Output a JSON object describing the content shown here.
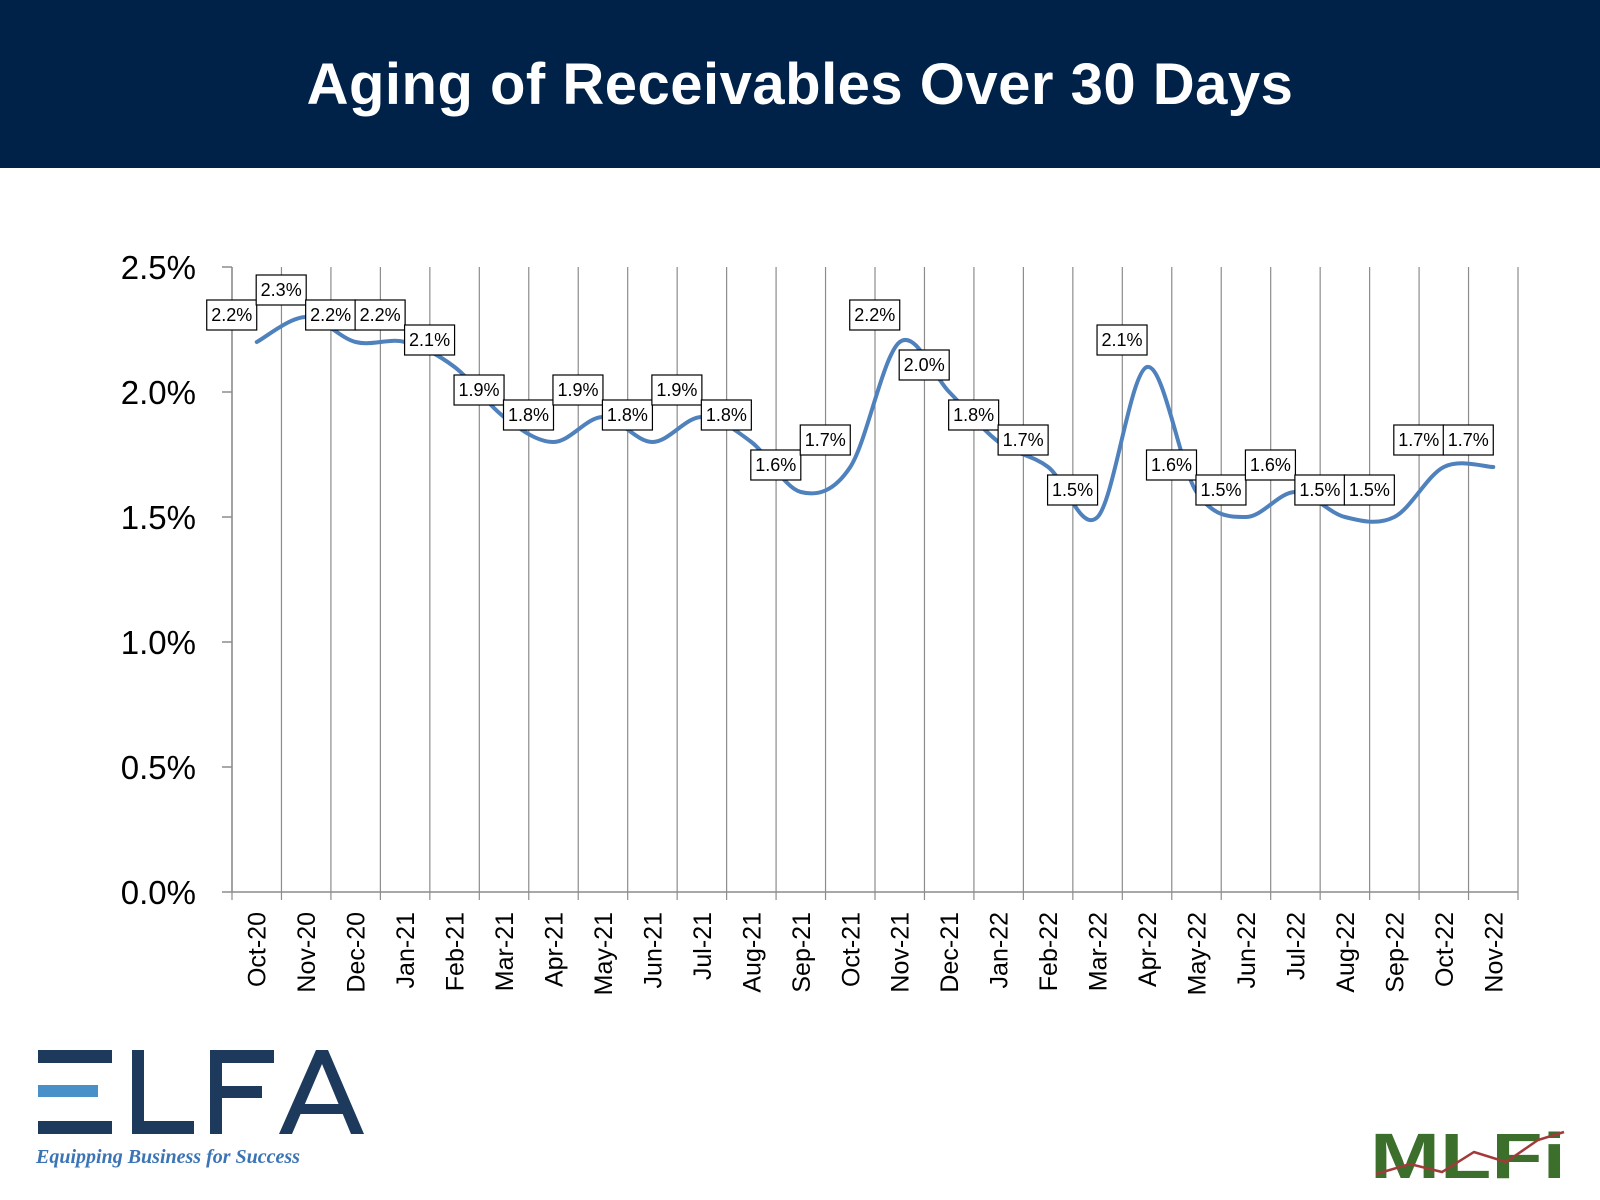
{
  "header": {
    "title": "Aging of Receivables Over 30 Days"
  },
  "colors": {
    "header_bg": "#002248",
    "line": "#4f81bd",
    "grid": "#8c8c8c",
    "elfa_dark": "#1d3a5c",
    "elfa_light": "#4a90c8",
    "mlfi_green": "#3c6e2c"
  },
  "chart_data": {
    "type": "line",
    "title": "",
    "xlabel": "",
    "ylabel": "",
    "ylim": [
      0,
      0.025
    ],
    "yticks": [
      "0.0%",
      "0.5%",
      "1.0%",
      "1.5%",
      "2.0%",
      "2.5%"
    ],
    "ytick_values": [
      0,
      0.005,
      0.01,
      0.015,
      0.02,
      0.025
    ],
    "grid": "vertical",
    "smooth": true,
    "categories": [
      "Oct-20",
      "Nov-20",
      "Dec-20",
      "Jan-21",
      "Feb-21",
      "Mar-21",
      "Apr-21",
      "May-21",
      "Jun-21",
      "Jul-21",
      "Aug-21",
      "Sep-21",
      "Oct-21",
      "Nov-21",
      "Dec-21",
      "Jan-22",
      "Feb-22",
      "Mar-22",
      "Apr-22",
      "May-22",
      "Jun-22",
      "Jul-22",
      "Aug-22",
      "Sep-22",
      "Oct-22",
      "Nov-22"
    ],
    "series": [
      {
        "values": [
          0.022,
          0.023,
          0.022,
          0.022,
          0.021,
          0.019,
          0.018,
          0.019,
          0.018,
          0.019,
          0.018,
          0.016,
          0.017,
          0.022,
          0.02,
          0.018,
          0.017,
          0.015,
          0.021,
          0.016,
          0.015,
          0.016,
          0.015,
          0.015,
          0.017,
          0.017
        ],
        "labels": [
          "2.2%",
          "2.3%",
          "2.2%",
          "2.2%",
          "2.1%",
          "1.9%",
          "1.8%",
          "1.9%",
          "1.8%",
          "1.9%",
          "1.8%",
          "1.6%",
          "1.7%",
          "2.2%",
          "2.0%",
          "1.8%",
          "1.7%",
          "1.5%",
          "2.1%",
          "1.6%",
          "1.5%",
          "1.6%",
          "1.5%",
          "1.5%",
          "1.7%",
          "1.7%"
        ]
      }
    ]
  },
  "logos": {
    "elfa": {
      "text": "ELFA",
      "tagline": "Equipping Business for Success"
    },
    "mlfi": {
      "text": "MLFi"
    }
  }
}
